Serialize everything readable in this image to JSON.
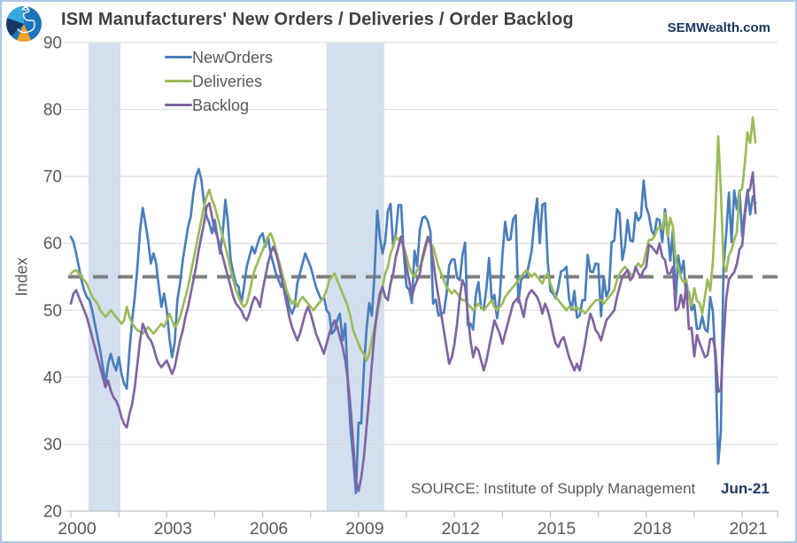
{
  "header": {
    "title": "ISM Manufacturers' New Orders / Deliveries / Order Backlog",
    "brand": "SEMWealth.com"
  },
  "footer": {
    "source_label": "SOURCE:  Institute of Supply Management",
    "latest_label": "Jun-21"
  },
  "colors": {
    "new_orders": "#4a7ebb",
    "deliveries": "#9bbb59",
    "backlog": "#8064a2",
    "recession_band": "#d3dfef",
    "gridline": "#d9d9d9",
    "axis": "#bfbfbf",
    "reference_line": "#7f7f7f",
    "tick_text": "#595959",
    "accent_navy": "#17375e"
  },
  "chart_data": {
    "type": "line",
    "title": "ISM Manufacturers' New Orders / Deliveries / Order Backlog",
    "xlabel": "",
    "ylabel": "Index",
    "ylim": [
      20,
      90
    ],
    "y_ticks": [
      20,
      30,
      40,
      50,
      60,
      70,
      80,
      90
    ],
    "x_label_years": [
      2000,
      2003,
      2006,
      2009,
      2012,
      2015,
      2018,
      2021
    ],
    "x_minor_tick_step_years": 1.5,
    "grid": true,
    "legend_position": "top-left-inside",
    "frequency": "monthly",
    "x_start_year": 2000,
    "x_end_label": "Jun-21",
    "reference_line": {
      "value": 55,
      "style": "dashed"
    },
    "recession_bands": [
      {
        "from": 2000.55,
        "to": 2001.55
      },
      {
        "from": 2008.0,
        "to": 2009.8
      }
    ],
    "series": [
      {
        "name": "NewOrders",
        "color_key": "new_orders",
        "values": [
          61.0,
          60.2,
          58.5,
          56.5,
          54.5,
          53.0,
          52.0,
          51.5,
          50.0,
          48.0,
          46.0,
          44.0,
          41.5,
          39.0,
          42.0,
          43.5,
          42.0,
          41.0,
          43.0,
          40.5,
          39.0,
          38.3,
          44.0,
          48.5,
          52.0,
          56.5,
          62.0,
          65.3,
          63.0,
          60.5,
          57.0,
          58.5,
          57.0,
          53.5,
          50.5,
          52.5,
          50.0,
          45.9,
          43.0,
          45.2,
          51.5,
          54.0,
          57.5,
          60.0,
          62.5,
          64.0,
          67.5,
          70.0,
          71.1,
          69.5,
          66.0,
          64.0,
          63.0,
          61.5,
          63.5,
          61.0,
          58.5,
          61.5,
          66.5,
          63.0,
          57.5,
          55.5,
          54.0,
          53.5,
          51.0,
          53.5,
          56.5,
          58.0,
          59.5,
          58.5,
          59.8,
          61.0,
          61.5,
          59.5,
          61.0,
          58.5,
          57.0,
          55.5,
          54.5,
          53.5,
          54.5,
          52.5,
          50.5,
          49.5,
          50.5,
          54.0,
          55.5,
          57.0,
          58.5,
          57.5,
          56.5,
          55.0,
          53.5,
          52.5,
          51.5,
          52.0,
          50.0,
          49.5,
          46.5,
          47.0,
          48.5,
          49.5,
          45.5,
          48.0,
          38.8,
          32.2,
          27.9,
          22.7,
          33.2,
          33.1,
          41.2,
          47.2,
          51.1,
          49.2,
          55.3,
          64.9,
          60.8,
          58.5,
          60.3,
          64.8,
          65.9,
          59.5,
          61.5,
          65.7,
          65.7,
          58.5,
          53.5,
          53.1,
          51.1,
          58.9,
          56.6,
          62.0,
          63.8,
          64.0,
          63.3,
          61.7,
          51.0,
          51.6,
          49.2,
          49.6,
          49.6,
          52.4,
          56.7,
          57.6,
          57.6,
          54.9,
          54.5,
          58.2,
          60.1,
          47.8,
          48.0,
          47.1,
          52.3,
          54.2,
          50.3,
          50.3,
          53.3,
          57.8,
          51.4,
          52.3,
          48.8,
          51.9,
          58.3,
          63.2,
          60.5,
          60.6,
          63.6,
          64.2,
          51.2,
          54.5,
          55.1,
          55.1,
          56.9,
          58.9,
          63.4,
          66.7,
          60.0,
          65.8,
          66.0,
          57.3,
          52.9,
          52.5,
          51.8,
          53.5,
          55.8,
          56.0,
          56.5,
          51.7,
          50.1,
          52.9,
          48.9,
          49.2,
          51.5,
          51.5,
          58.3,
          55.8,
          55.7,
          57.0,
          56.9,
          49.1,
          55.1,
          52.1,
          53.0,
          60.2,
          60.4,
          65.1,
          64.5,
          57.5,
          59.5,
          63.5,
          60.4,
          60.3,
          64.6,
          63.4,
          64.0,
          69.4,
          65.4,
          64.2,
          61.9,
          61.2,
          63.7,
          63.5,
          60.2,
          65.1,
          61.8,
          57.4,
          62.1,
          51.1,
          58.2,
          55.5,
          57.4,
          51.7,
          52.7,
          50.0,
          50.8,
          47.2,
          47.3,
          49.1,
          47.2,
          46.8,
          52.0,
          49.8,
          42.2,
          27.1,
          31.8,
          56.4,
          61.5,
          67.6,
          60.2,
          67.9,
          65.1,
          67.9,
          61.1,
          64.8,
          68.0,
          64.3,
          67.0,
          66.0
        ]
      },
      {
        "name": "Deliveries",
        "color_key": "deliveries",
        "values": [
          55.5,
          55.8,
          56.0,
          55.5,
          55.0,
          54.5,
          54.0,
          53.0,
          52.0,
          51.5,
          51.0,
          50.0,
          49.5,
          49.0,
          49.5,
          50.0,
          49.5,
          49.0,
          48.5,
          48.0,
          48.5,
          50.5,
          49.0,
          48.0,
          47.5,
          47.0,
          46.8,
          46.5,
          47.0,
          47.5,
          47.0,
          46.5,
          47.0,
          47.5,
          48.0,
          47.5,
          48.5,
          49.5,
          48.5,
          47.5,
          48.0,
          49.0,
          50.5,
          52.0,
          53.5,
          55.5,
          57.5,
          59.5,
          61.5,
          63.5,
          65.5,
          67.0,
          68.0,
          66.5,
          65.5,
          64.0,
          62.5,
          61.0,
          59.5,
          58.0,
          56.0,
          54.5,
          53.0,
          52.0,
          51.0,
          50.5,
          51.0,
          52.5,
          54.5,
          56.0,
          57.0,
          58.0,
          59.0,
          60.0,
          61.0,
          61.5,
          60.5,
          59.0,
          57.5,
          56.0,
          54.5,
          53.0,
          52.0,
          51.0,
          51.5,
          50.5,
          51.5,
          52.0,
          51.5,
          51.0,
          50.5,
          50.0,
          50.5,
          51.0,
          51.5,
          52.0,
          53.0,
          54.5,
          55.0,
          55.5,
          54.5,
          53.5,
          52.5,
          51.5,
          50.5,
          49.0,
          47.0,
          46.0,
          45.0,
          44.0,
          43.5,
          42.5,
          43.5,
          45.5,
          47.5,
          49.5,
          51.5,
          53.5,
          55.5,
          56.5,
          58.5,
          59.5,
          61.0,
          60.5,
          61.0,
          59.5,
          58.0,
          56.5,
          55.5,
          55.0,
          56.0,
          56.5,
          57.5,
          59.0,
          60.5,
          60.0,
          59.5,
          58.0,
          56.5,
          55.5,
          54.5,
          53.5,
          53.0,
          52.5,
          53.0,
          52.5,
          52.0,
          51.5,
          51.5,
          51.0,
          50.5,
          50.0,
          50.5,
          51.0,
          50.5,
          50.0,
          50.5,
          51.0,
          51.5,
          50.5,
          50.0,
          50.5,
          51.0,
          52.0,
          52.5,
          53.0,
          53.5,
          54.0,
          54.5,
          55.0,
          55.5,
          56.0,
          55.5,
          55.0,
          55.5,
          55.0,
          54.5,
          54.0,
          55.0,
          55.5,
          54.0,
          53.0,
          52.0,
          51.5,
          51.0,
          50.5,
          50.0,
          50.5,
          50.5,
          50.0,
          50.5,
          50.0,
          50.0,
          49.5,
          50.0,
          50.5,
          51.0,
          51.5,
          51.5,
          51.5,
          51.0,
          51.5,
          52.0,
          52.5,
          53.0,
          54.5,
          55.5,
          56.0,
          56.5,
          56.0,
          55.5,
          55.0,
          56.5,
          57.0,
          56.5,
          57.0,
          59.0,
          60.5,
          60.5,
          61.0,
          62.0,
          62.5,
          62.1,
          64.5,
          61.0,
          63.8,
          62.5,
          57.5,
          56.5,
          54.9,
          54.2,
          54.6,
          52.0,
          50.7,
          53.3,
          51.4,
          51.1,
          49.5,
          52.0,
          54.6,
          52.9,
          57.3,
          65.0,
          76.0,
          68.0,
          56.9,
          55.8,
          58.2,
          59.0,
          60.5,
          61.7,
          67.7,
          68.2,
          72.0,
          76.6,
          75.0,
          78.8,
          75.1
        ]
      },
      {
        "name": "Backlog",
        "color_key": "backlog",
        "values": [
          51.0,
          52.5,
          53.0,
          52.0,
          51.0,
          50.0,
          49.0,
          47.5,
          46.0,
          44.5,
          43.0,
          41.5,
          40.0,
          38.5,
          39.5,
          38.0,
          37.0,
          36.5,
          35.5,
          34.0,
          33.0,
          32.5,
          34.5,
          36.0,
          38.5,
          42.0,
          45.5,
          48.0,
          47.0,
          46.0,
          45.5,
          44.5,
          43.0,
          42.0,
          41.5,
          42.0,
          42.5,
          41.5,
          40.5,
          41.5,
          43.5,
          45.5,
          47.0,
          49.0,
          50.5,
          52.5,
          54.5,
          56.5,
          59.0,
          61.0,
          63.0,
          65.5,
          66.0,
          64.0,
          62.0,
          61.0,
          59.5,
          58.0,
          56.5,
          55.0,
          53.5,
          52.0,
          51.0,
          50.5,
          50.0,
          49.0,
          48.5,
          49.5,
          51.0,
          52.0,
          51.5,
          50.5,
          53.0,
          55.0,
          57.0,
          58.5,
          59.5,
          58.5,
          57.0,
          55.0,
          53.0,
          51.0,
          49.0,
          47.5,
          46.5,
          45.5,
          46.5,
          48.0,
          49.5,
          50.5,
          49.5,
          48.0,
          46.5,
          45.5,
          44.5,
          43.5,
          45.0,
          46.5,
          47.5,
          48.5,
          47.5,
          46.0,
          44.5,
          42.5,
          39.5,
          35.5,
          30.0,
          24.5,
          23.0,
          25.0,
          28.0,
          32.5,
          37.0,
          42.0,
          46.5,
          50.0,
          52.5,
          53.5,
          52.0,
          51.5,
          54.0,
          55.5,
          58.0,
          59.5,
          61.0,
          59.0,
          56.5,
          54.5,
          52.0,
          53.5,
          54.5,
          55.5,
          58.0,
          59.5,
          61.0,
          60.0,
          57.5,
          54.5,
          52.0,
          49.5,
          47.0,
          44.5,
          42.0,
          43.0,
          45.0,
          48.0,
          52.0,
          54.5,
          53.5,
          49.5,
          45.5,
          43.0,
          44.5,
          44.0,
          42.5,
          41.0,
          42.5,
          44.5,
          46.5,
          48.5,
          47.5,
          46.5,
          45.0,
          46.5,
          48.0,
          49.5,
          51.0,
          51.5,
          52.0,
          50.5,
          49.0,
          51.5,
          52.5,
          53.0,
          52.5,
          52.0,
          51.0,
          49.5,
          51.0,
          50.0,
          48.5,
          46.5,
          45.0,
          44.5,
          45.5,
          46.0,
          44.5,
          43.0,
          42.0,
          41.0,
          42.0,
          41.0,
          43.0,
          45.0,
          47.5,
          49.5,
          48.5,
          47.0,
          46.5,
          45.5,
          47.0,
          48.5,
          49.0,
          49.5,
          50.0,
          52.0,
          53.5,
          55.0,
          55.5,
          56.0,
          54.5,
          55.0,
          56.5,
          55.5,
          55.0,
          56.0,
          56.5,
          59.8,
          59.5,
          59.0,
          58.5,
          60.0,
          58.0,
          57.5,
          55.5,
          55.5,
          56.5,
          50.0,
          50.3,
          52.3,
          50.4,
          53.9,
          47.2,
          47.4,
          43.1,
          46.3,
          45.1,
          44.1,
          43.0,
          43.3,
          45.7,
          45.8,
          43.9,
          37.8,
          38.2,
          45.3,
          51.8,
          54.6,
          55.2,
          55.7,
          56.9,
          59.1,
          59.7,
          64.0,
          67.5,
          68.2,
          70.6,
          64.5
        ]
      }
    ]
  }
}
